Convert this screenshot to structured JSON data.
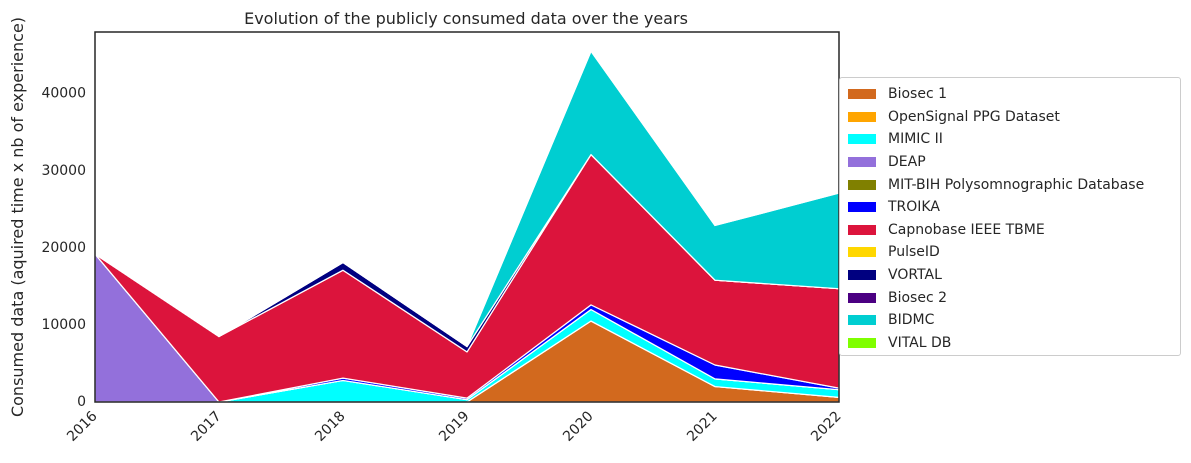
{
  "chart_data": {
    "type": "area",
    "stacked": true,
    "title": "Evolution of the publicly consumed data over the years",
    "xlabel": "",
    "ylabel": "Consumed data (aquired time x nb of experience)",
    "x": [
      2016,
      2017,
      2018,
      2019,
      2020,
      2021,
      2022
    ],
    "xlim": [
      2016,
      2022
    ],
    "ylim": [
      0,
      48000
    ],
    "yticks": [
      0,
      10000,
      20000,
      30000,
      40000
    ],
    "grid": false,
    "legend_position": "right-outside",
    "series": [
      {
        "name": "Biosec 1",
        "color": "#d2691e",
        "values": [
          0,
          0,
          0,
          0,
          10500,
          2000,
          600
        ]
      },
      {
        "name": "OpenSignal PPG Dataset",
        "color": "#ffa500",
        "values": [
          0,
          0,
          0,
          0,
          0,
          0,
          0
        ]
      },
      {
        "name": "MIMIC II",
        "color": "#00ffff",
        "values": [
          0,
          0,
          2800,
          300,
          1500,
          1000,
          1000
        ]
      },
      {
        "name": "DEAP",
        "color": "#9370db",
        "values": [
          19200,
          0,
          0,
          0,
          0,
          0,
          0
        ]
      },
      {
        "name": "MIT-BIH Polysomnographic Database",
        "color": "#808000",
        "values": [
          0,
          0,
          0,
          0,
          0,
          0,
          0
        ]
      },
      {
        "name": "TROIKA",
        "color": "#0000ff",
        "values": [
          0,
          0,
          300,
          200,
          600,
          1800,
          200
        ]
      },
      {
        "name": "Capnobase IEEE TBME",
        "color": "#dc143c",
        "values": [
          0,
          8500,
          14000,
          6000,
          19500,
          11000,
          12900
        ]
      },
      {
        "name": "PulseID",
        "color": "#ffd700",
        "values": [
          0,
          0,
          0,
          0,
          0,
          0,
          0
        ]
      },
      {
        "name": "VORTAL",
        "color": "#000080",
        "values": [
          0,
          0,
          1000,
          700,
          0,
          0,
          0
        ]
      },
      {
        "name": "Biosec 2",
        "color": "#4b0082",
        "values": [
          0,
          0,
          0,
          0,
          0,
          0,
          0
        ]
      },
      {
        "name": "BIDMC",
        "color": "#00ced1",
        "values": [
          0,
          0,
          0,
          0,
          13400,
          7100,
          12400
        ]
      },
      {
        "name": "VITAL DB",
        "color": "#7fff00",
        "values": [
          0,
          0,
          0,
          0,
          0,
          0,
          0
        ]
      }
    ]
  }
}
